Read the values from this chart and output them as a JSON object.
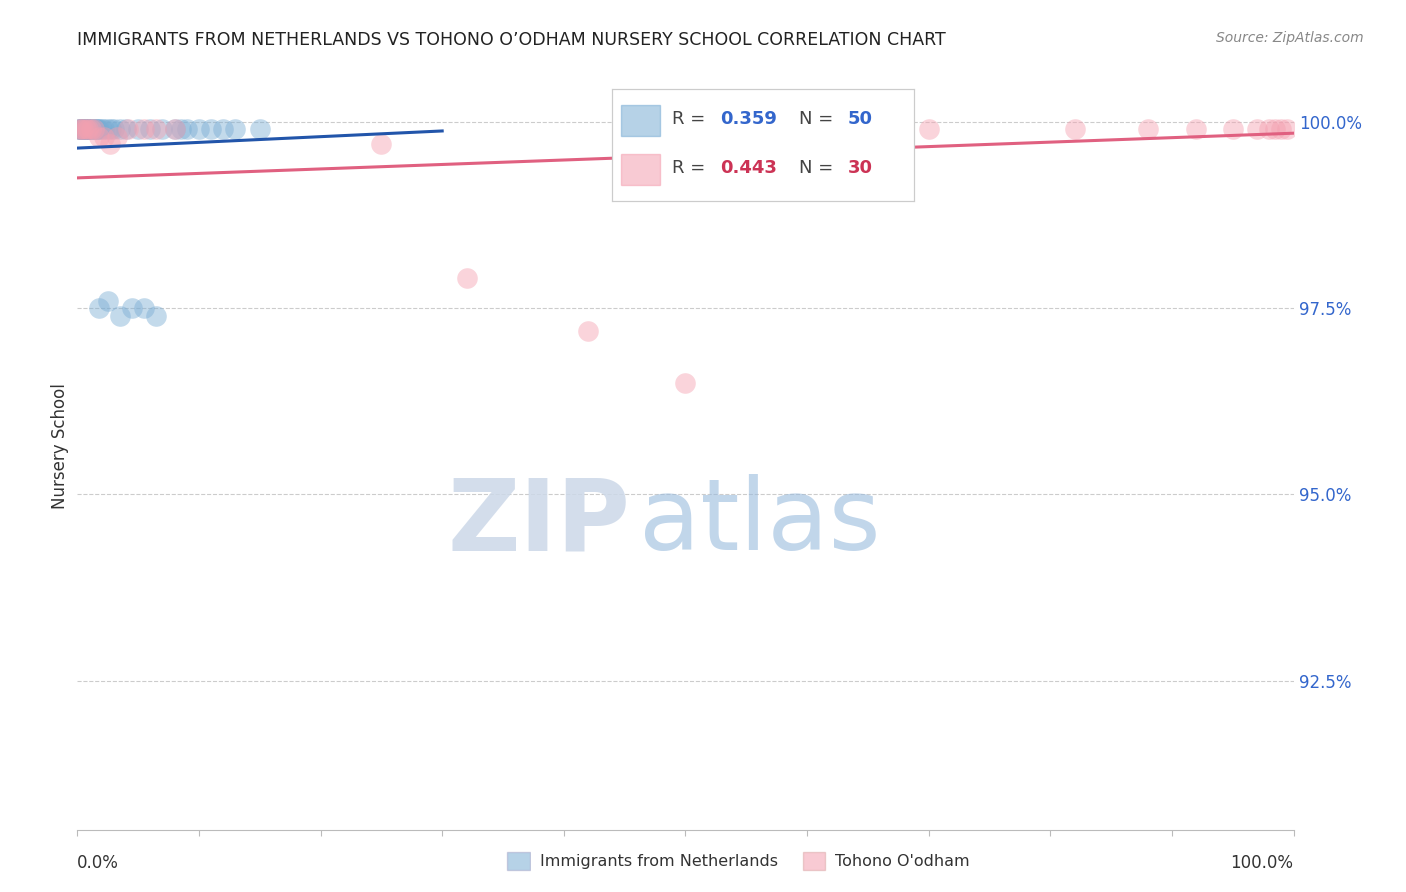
{
  "title": "IMMIGRANTS FROM NETHERLANDS VS TOHONO O’ODHAM NURSERY SCHOOL CORRELATION CHART",
  "source": "Source: ZipAtlas.com",
  "ylabel": "Nursery School",
  "ytick_labels": [
    "100.0%",
    "97.5%",
    "95.0%",
    "92.5%"
  ],
  "ytick_values": [
    1.0,
    0.975,
    0.95,
    0.925
  ],
  "xlim": [
    0.0,
    1.0
  ],
  "ylim": [
    0.905,
    1.008
  ],
  "blue_color": "#7aadd4",
  "pink_color": "#f4a0b0",
  "blue_line_color": "#2255aa",
  "pink_line_color": "#e06080",
  "blue_scatter_x": [
    0.001,
    0.002,
    0.002,
    0.003,
    0.003,
    0.004,
    0.004,
    0.005,
    0.005,
    0.006,
    0.006,
    0.007,
    0.007,
    0.008,
    0.008,
    0.009,
    0.009,
    0.01,
    0.011,
    0.012,
    0.013,
    0.014,
    0.015,
    0.016,
    0.017,
    0.018,
    0.02,
    0.022,
    0.025,
    0.028,
    0.03,
    0.035,
    0.04,
    0.05,
    0.06,
    0.07,
    0.085,
    0.1,
    0.12,
    0.15,
    0.018,
    0.025,
    0.035,
    0.045,
    0.055,
    0.065,
    0.08,
    0.09,
    0.11,
    0.13
  ],
  "blue_scatter_y": [
    0.999,
    0.999,
    0.999,
    0.999,
    0.999,
    0.999,
    0.999,
    0.999,
    0.999,
    0.999,
    0.999,
    0.999,
    0.999,
    0.999,
    0.999,
    0.999,
    0.999,
    0.999,
    0.999,
    0.999,
    0.999,
    0.999,
    0.999,
    0.999,
    0.999,
    0.999,
    0.999,
    0.999,
    0.999,
    0.999,
    0.999,
    0.999,
    0.999,
    0.999,
    0.999,
    0.999,
    0.999,
    0.999,
    0.999,
    0.999,
    0.975,
    0.976,
    0.974,
    0.975,
    0.975,
    0.974,
    0.999,
    0.999,
    0.999,
    0.999
  ],
  "pink_scatter_x": [
    0.001,
    0.003,
    0.005,
    0.007,
    0.009,
    0.011,
    0.014,
    0.018,
    0.022,
    0.027,
    0.033,
    0.042,
    0.055,
    0.065,
    0.08,
    0.25,
    0.32,
    0.42,
    0.5,
    0.62,
    0.7,
    0.82,
    0.88,
    0.92,
    0.95,
    0.97,
    0.98,
    0.985,
    0.99,
    0.995
  ],
  "pink_scatter_y": [
    0.999,
    0.999,
    0.999,
    0.999,
    0.999,
    0.999,
    0.999,
    0.998,
    0.998,
    0.997,
    0.998,
    0.999,
    0.999,
    0.999,
    0.999,
    0.997,
    0.979,
    0.972,
    0.965,
    0.999,
    0.999,
    0.999,
    0.999,
    0.999,
    0.999,
    0.999,
    0.999,
    0.999,
    0.999,
    0.999
  ],
  "blue_line_x": [
    0.0,
    0.3
  ],
  "blue_line_y": [
    0.9965,
    0.9988
  ],
  "pink_line_x": [
    0.0,
    1.0
  ],
  "pink_line_y": [
    0.9925,
    0.9985
  ]
}
